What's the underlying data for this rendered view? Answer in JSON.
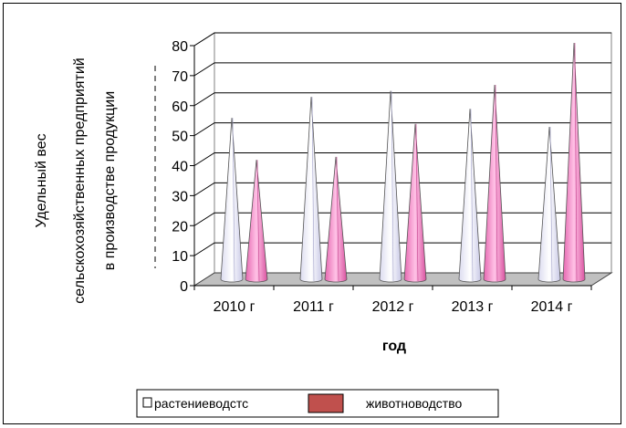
{
  "chart_data": {
    "type": "bar",
    "shape": "cone-3d",
    "categories": [
      "2010 г",
      "2011 г",
      "2012 г",
      "2013 г",
      "2014 г"
    ],
    "series": [
      {
        "name": "растениеводство",
        "values": [
          55,
          62,
          64,
          58,
          52
        ],
        "color": "#f2f2fb"
      },
      {
        "name": "животноводство",
        "values": [
          41,
          42,
          53,
          66,
          80
        ],
        "color": "#f5a3d0"
      }
    ],
    "xlabel": "год",
    "ylabel_lines": [
      "Удельный вес",
      "сельскохозяйственных предприятий",
      "в производстве продукции"
    ],
    "ylim": [
      0,
      80
    ],
    "yticks": [
      0,
      10,
      20,
      30,
      40,
      50,
      60,
      70,
      80
    ],
    "grid": true,
    "legend_position": "bottom",
    "legend_labels": [
      "растениеводстс",
      "животноводство"
    ],
    "legend_swatch_color": "#c0504d"
  }
}
